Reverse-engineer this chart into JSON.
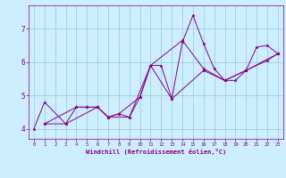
{
  "xlabel": "Windchill (Refroidissement éolien,°C)",
  "bg_color": "#cceeff",
  "line_color": "#880088",
  "grid_color": "#99cccc",
  "lines": [
    {
      "x": [
        0,
        1,
        3,
        4,
        5,
        6,
        7,
        8,
        9,
        10,
        11,
        12,
        13,
        14,
        15,
        16,
        17,
        18,
        19,
        20,
        21,
        22,
        23
      ],
      "y": [
        4.0,
        4.8,
        4.15,
        4.65,
        4.65,
        4.65,
        4.35,
        4.45,
        4.35,
        4.95,
        5.9,
        5.9,
        4.9,
        6.6,
        7.4,
        6.55,
        5.8,
        5.45,
        5.45,
        5.75,
        6.45,
        6.5,
        6.25
      ]
    },
    {
      "x": [
        1,
        3,
        6,
        7,
        8,
        10,
        11,
        14,
        16,
        18,
        20,
        22,
        23
      ],
      "y": [
        4.15,
        4.15,
        4.65,
        4.35,
        4.45,
        4.95,
        5.9,
        6.65,
        5.8,
        5.45,
        5.75,
        6.05,
        6.25
      ]
    },
    {
      "x": [
        1,
        4,
        5,
        6,
        7,
        9,
        11,
        13,
        16,
        18,
        20,
        23
      ],
      "y": [
        4.15,
        4.65,
        4.65,
        4.65,
        4.35,
        4.35,
        5.9,
        4.9,
        5.75,
        5.45,
        5.75,
        6.25
      ]
    }
  ],
  "xlim": [
    -0.5,
    23.5
  ],
  "ylim": [
    3.7,
    7.7
  ],
  "yticks": [
    4,
    5,
    6,
    7
  ],
  "xticks": [
    0,
    1,
    2,
    3,
    4,
    5,
    6,
    7,
    8,
    9,
    10,
    11,
    12,
    13,
    14,
    15,
    16,
    17,
    18,
    19,
    20,
    21,
    22,
    23
  ],
  "xlabel_fontsize": 5.0,
  "xtick_fontsize": 4.0,
  "ytick_fontsize": 5.5,
  "linewidth": 0.7,
  "markersize": 2.5
}
